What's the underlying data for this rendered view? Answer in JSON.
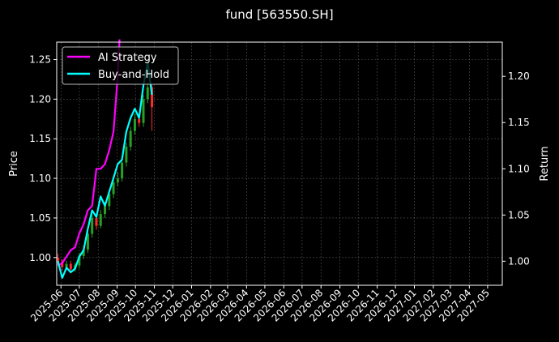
{
  "chart_data": {
    "type": "line",
    "title": "fund [563550.SH]",
    "ylabel_left": "Price",
    "ylabel_right": "Return",
    "grid": true,
    "legend_placement": "top-left",
    "left_axis": {
      "ylim": [
        0.965,
        1.272
      ],
      "ticks": [
        "1.00",
        "1.05",
        "1.10",
        "1.15",
        "1.20",
        "1.25"
      ],
      "tick_values": [
        1.0,
        1.05,
        1.1,
        1.15,
        1.2,
        1.25
      ]
    },
    "right_axis": {
      "ylim": [
        0.974,
        1.237
      ],
      "ticks": [
        "1.00",
        "1.05",
        "1.10",
        "1.15",
        "1.20"
      ],
      "tick_values": [
        1.0,
        1.05,
        1.1,
        1.15,
        1.2
      ]
    },
    "x_ticks": [
      "2025-06",
      "2025-07",
      "2025-08",
      "2025-09",
      "2025-10",
      "2025-11",
      "2025-12",
      "2026-01",
      "2026-02",
      "2026-03",
      "2026-04",
      "2026-05",
      "2026-06",
      "2026-07",
      "2026-08",
      "2026-09",
      "2026-10",
      "2026-11",
      "2026-12",
      "2027-01",
      "2027-02",
      "2027-03",
      "2027-04",
      "2027-05"
    ],
    "x_range": [
      "2025-05-25",
      "2027-05-25"
    ],
    "series": [
      {
        "name": "AI Strategy",
        "color": "#ff00ff",
        "axis": "right",
        "x": [
          "2025-05-27",
          "2025-06-03",
          "2025-06-10",
          "2025-06-17",
          "2025-06-24",
          "2025-07-01",
          "2025-07-08",
          "2025-07-15",
          "2025-07-22",
          "2025-07-29",
          "2025-08-05",
          "2025-08-12",
          "2025-08-19",
          "2025-08-26",
          "2025-09-02",
          "2025-09-05"
        ],
        "values": [
          0.995,
          0.998,
          1.005,
          1.012,
          1.015,
          1.03,
          1.04,
          1.055,
          1.06,
          1.1,
          1.1,
          1.105,
          1.12,
          1.14,
          1.2,
          1.24
        ]
      },
      {
        "name": "Buy-and-Hold",
        "color": "#00ffff",
        "axis": "right",
        "x": [
          "2025-05-27",
          "2025-06-03",
          "2025-06-10",
          "2025-06-17",
          "2025-06-24",
          "2025-07-01",
          "2025-07-08",
          "2025-07-15",
          "2025-07-22",
          "2025-07-29",
          "2025-08-05",
          "2025-08-12",
          "2025-08-19",
          "2025-08-26",
          "2025-09-02",
          "2025-09-09",
          "2025-09-16",
          "2025-09-23",
          "2025-09-30",
          "2025-10-07",
          "2025-10-14",
          "2025-10-21",
          "2025-10-28"
        ],
        "values": [
          1.0,
          0.982,
          0.993,
          0.988,
          0.992,
          1.005,
          1.012,
          1.035,
          1.055,
          1.048,
          1.07,
          1.06,
          1.075,
          1.09,
          1.105,
          1.11,
          1.14,
          1.155,
          1.165,
          1.155,
          1.19,
          1.215,
          1.18
        ]
      }
    ],
    "candles": {
      "axis": "left",
      "up_color": "#26a026",
      "down_color": "#ff2a2a",
      "x": [
        "2025-05-27",
        "2025-06-03",
        "2025-06-10",
        "2025-06-17",
        "2025-06-24",
        "2025-07-01",
        "2025-07-08",
        "2025-07-15",
        "2025-07-22",
        "2025-07-29",
        "2025-08-05",
        "2025-08-12",
        "2025-08-19",
        "2025-08-26",
        "2025-09-02",
        "2025-09-09",
        "2025-09-16",
        "2025-09-23",
        "2025-09-30",
        "2025-10-07",
        "2025-10-14",
        "2025-10-21",
        "2025-10-28"
      ],
      "open": [
        1.0,
        0.995,
        0.988,
        0.992,
        0.985,
        0.99,
        1.002,
        1.01,
        1.03,
        1.05,
        1.04,
        1.055,
        1.065,
        1.08,
        1.095,
        1.1,
        1.12,
        1.14,
        1.16,
        1.175,
        1.17,
        1.2,
        1.215
      ],
      "close": [
        0.995,
        0.988,
        0.992,
        0.985,
        0.99,
        1.002,
        1.01,
        1.03,
        1.05,
        1.04,
        1.055,
        1.065,
        1.08,
        1.095,
        1.1,
        1.12,
        1.14,
        1.16,
        1.175,
        1.17,
        1.2,
        1.215,
        1.19
      ],
      "high": [
        1.005,
        0.998,
        0.996,
        0.996,
        0.993,
        1.006,
        1.015,
        1.035,
        1.055,
        1.053,
        1.06,
        1.07,
        1.085,
        1.1,
        1.108,
        1.125,
        1.145,
        1.165,
        1.182,
        1.18,
        1.205,
        1.222,
        1.218
      ],
      "low": [
        0.99,
        0.983,
        0.985,
        0.98,
        0.982,
        0.986,
        0.998,
        1.006,
        1.025,
        1.035,
        1.037,
        1.05,
        1.06,
        1.075,
        1.09,
        1.096,
        1.115,
        1.135,
        1.155,
        1.165,
        1.165,
        1.195,
        1.16
      ]
    }
  }
}
